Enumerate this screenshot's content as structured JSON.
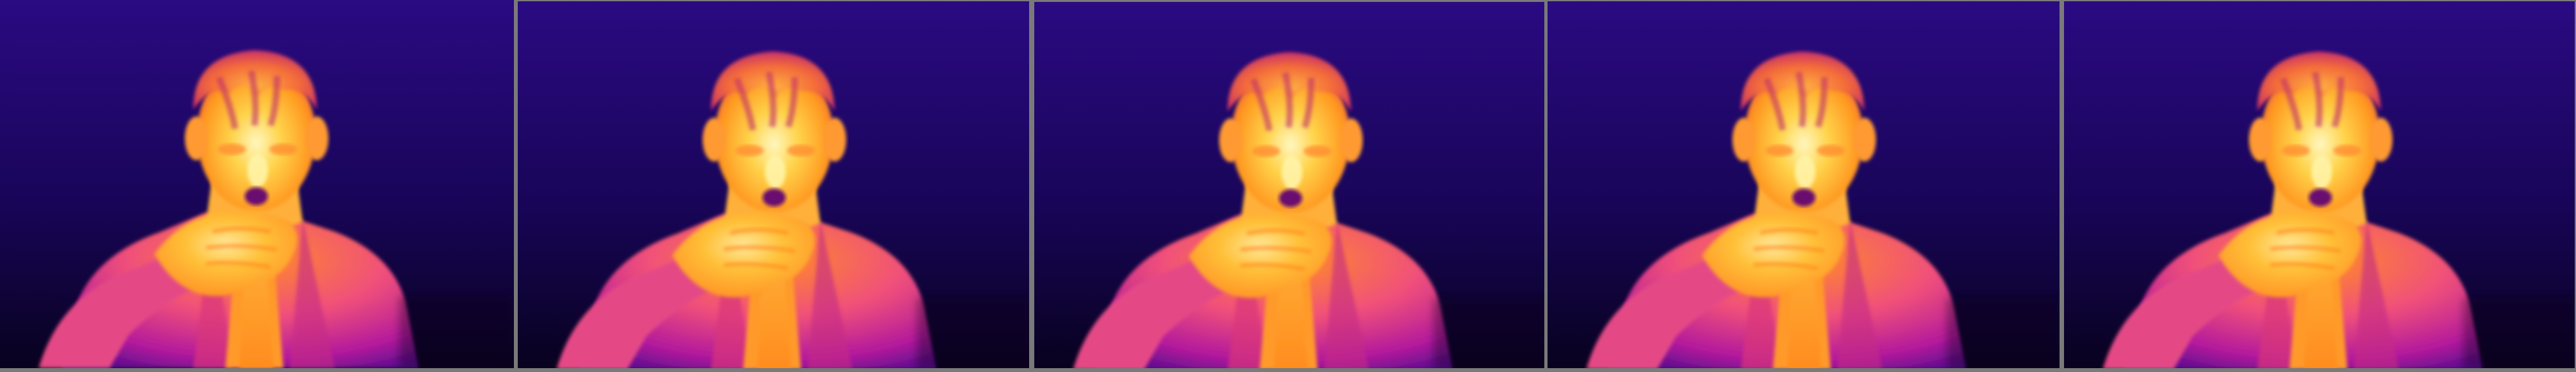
{
  "strip": {
    "frame_count": 5,
    "subject": "thermal-image-person-hand-to-mouth",
    "palette": {
      "background_top": "#2a0a80",
      "background_bottom": "#0a0228",
      "cold": "#3a0a8a",
      "cool": "#b01a9a",
      "warm": "#f0508a",
      "hot": "#ff9a20",
      "hotter": "#ffd040",
      "hottest": "#fff6b0"
    }
  }
}
